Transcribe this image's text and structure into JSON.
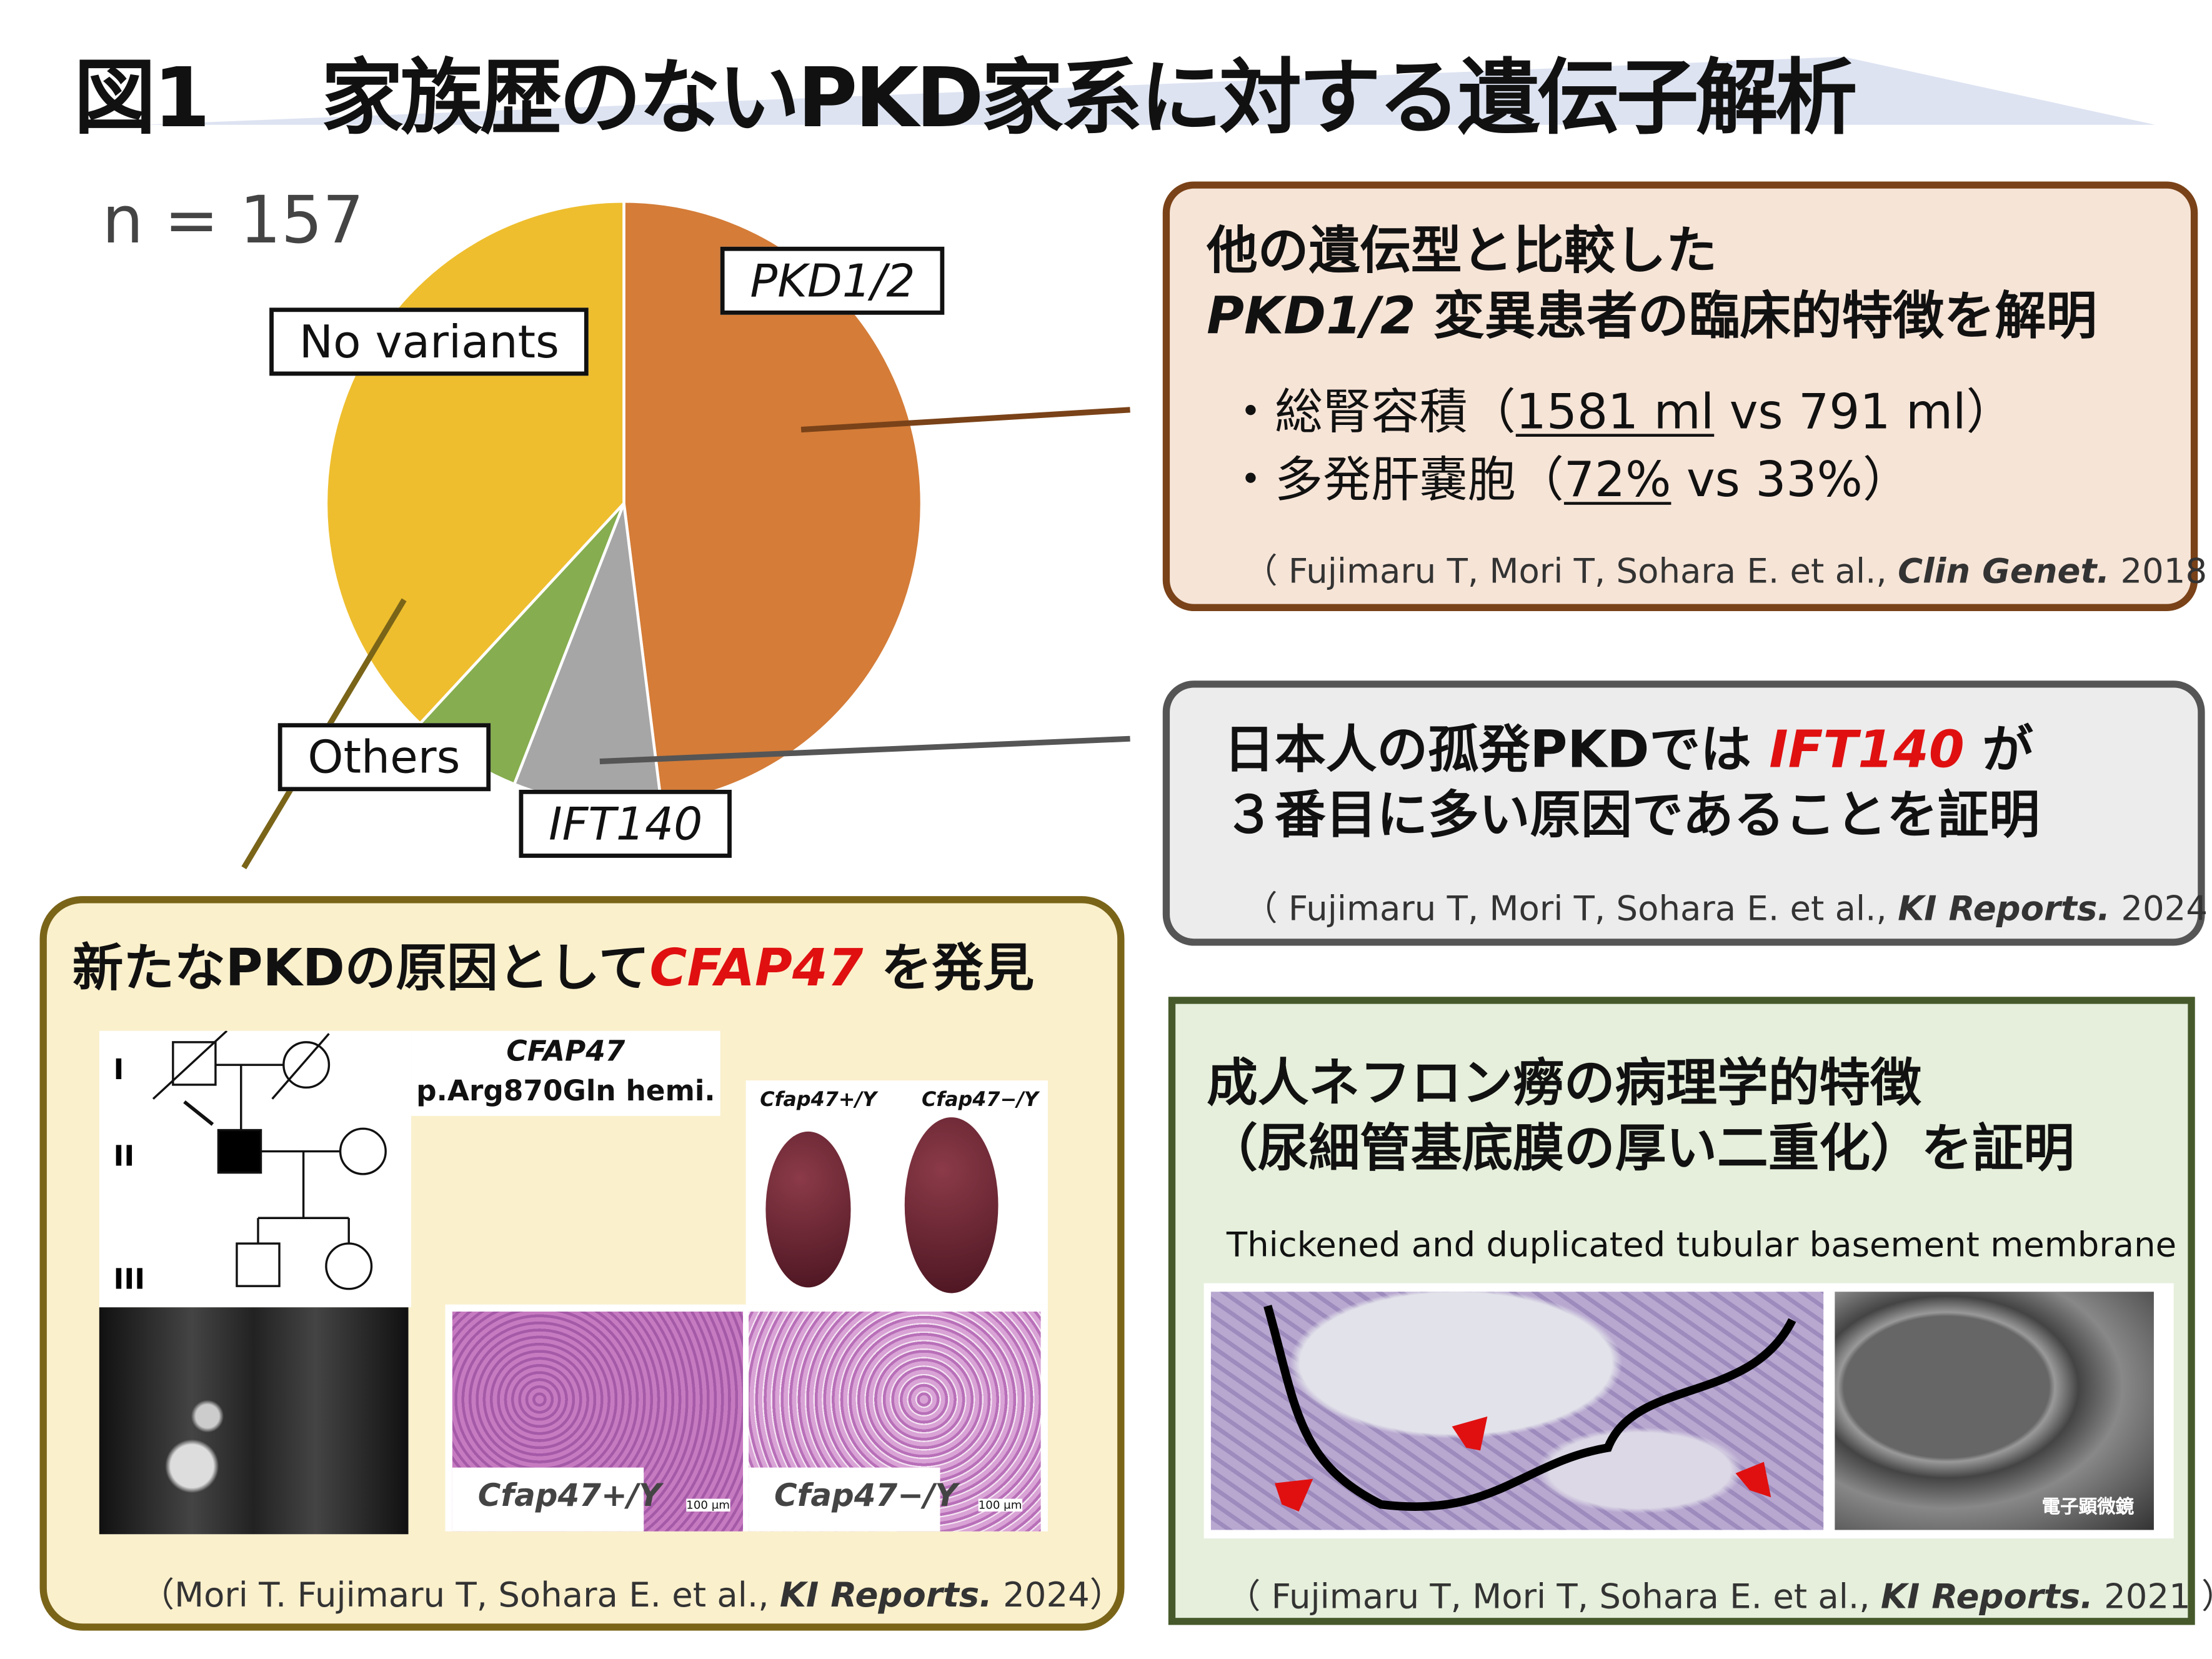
{
  "title": {
    "figure": "図1",
    "text": "家族歴のないPKD家系に対する遺伝子解析"
  },
  "chart_data": {
    "type": "pie",
    "title": "n = 157",
    "categories": [
      "PKD1/2",
      "IFT140",
      "Others",
      "No variants"
    ],
    "values": [
      48,
      8,
      6,
      38
    ],
    "unit": "percent (estimated)",
    "colors": [
      "#d47c38",
      "#a6a6a6",
      "#86ad4f",
      "#eebe2e"
    ]
  },
  "box1": {
    "line1": "他の遺伝型と比較した",
    "line2_em": "PKD1/2",
    "line2": " 変異患者の臨床的特徴を解明",
    "bullets": [
      {
        "label": "・総腎容積（",
        "u": "1581 ml",
        "rest": " vs 791 ml）"
      },
      {
        "label": "・多発肝嚢胞（",
        "u": "72%",
        "rest": " vs 33%）"
      }
    ],
    "cite_pre": "（ Fujimaru T, Mori T, Sohara E. et al., ",
    "cite_journal": "Clin Genet.",
    "cite_post": " 2018 ）"
  },
  "box2": {
    "line1_pre": "日本人の孤発PKDでは ",
    "line1_gene": "IFT140",
    "line1_post": " が",
    "line2": "３番目に多い原因であることを証明",
    "cite_pre": "（ Fujimaru T, Mori T, Sohara E. et al., ",
    "cite_journal": "KI Reports.",
    "cite_post": " 2024 ）"
  },
  "box3": {
    "head_pre": "新たなPKDの原因として",
    "head_gene": "CFAP47",
    "head_post": " を発見",
    "variant_gene": "CFAP47",
    "variant": "p.Arg870Gln hemi.",
    "pedigree_gens": [
      "I",
      "II",
      "III"
    ],
    "kidney_wt": "Cfap47+/Y",
    "kidney_ko": "Cfap47−/Y",
    "histo_wt": "Cfap47+/Y",
    "histo_ko": "Cfap47−/Y",
    "scale": "100 μm",
    "cite_pre": "（Mori T. Fujimaru T, Sohara E. et al., ",
    "cite_journal": "KI Reports.",
    "cite_post": " 2024）"
  },
  "box4": {
    "line1": "成人ネフロン癆の病理学的特徴",
    "line2": "（尿細管基底膜の厚い二重化）を証明",
    "caption": "Thickened and duplicated tubular basement membrane",
    "em_label": "電子顕微鏡",
    "cite_pre": "（ Fujimaru T, Mori T, Sohara E. et al.,  ",
    "cite_journal": "KI Reports.",
    "cite_post": " 2021 ）"
  }
}
